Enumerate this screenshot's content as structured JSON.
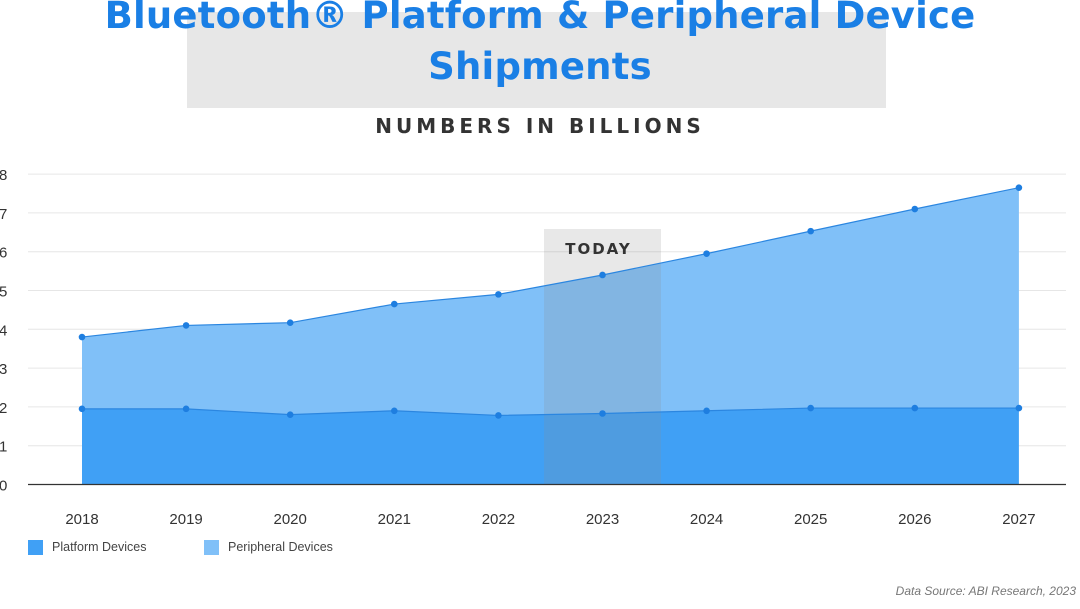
{
  "colors": {
    "platform": "#40a0f5",
    "peripheral": "#80c0f8",
    "title": "#1a7fe5",
    "line": "#2b86e0",
    "point": "#1e7ee0",
    "grid": "#e6e6e6",
    "today_band": "#8c8c8c"
  },
  "legend": {
    "platform_label": "Platform Devices",
    "peripheral_label": "Peripheral Devices"
  },
  "source": "Data Source: ABI Research, 2023",
  "chart_data": {
    "type": "area",
    "stacked": true,
    "title": "Bluetooth® Platform & Peripheral Device Shipments",
    "subtitle": "NUMBERS IN BILLIONS",
    "categories": [
      "2018",
      "2019",
      "2020",
      "2021",
      "2022",
      "2023",
      "2024",
      "2025",
      "2026",
      "2027"
    ],
    "series": [
      {
        "name": "Platform Devices",
        "values": [
          1.95,
          1.95,
          1.8,
          1.9,
          1.78,
          1.83,
          1.9,
          1.97,
          1.97,
          1.97
        ]
      },
      {
        "name": "Peripheral Devices",
        "values": [
          1.85,
          2.15,
          2.37,
          2.75,
          3.12,
          3.57,
          4.05,
          4.56,
          5.13,
          5.68
        ]
      }
    ],
    "totals": [
      3.8,
      4.1,
      4.17,
      4.65,
      4.9,
      5.4,
      5.95,
      6.53,
      7.1,
      7.65
    ],
    "yticks": [
      "0",
      "1",
      "2",
      "3",
      "4",
      "5",
      "6",
      "7",
      "8"
    ],
    "ylim": [
      0,
      8
    ],
    "highlight": {
      "category": "2023",
      "label": "TODAY"
    },
    "grid": true,
    "legend_position": "bottom-left"
  }
}
